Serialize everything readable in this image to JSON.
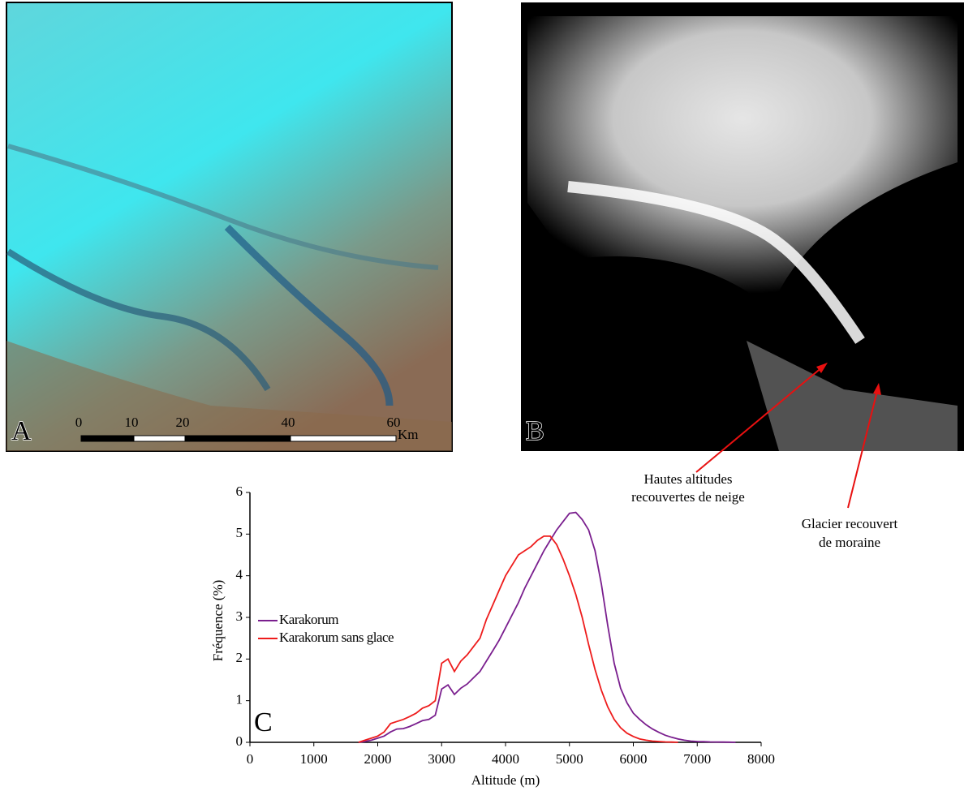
{
  "panels": {
    "a": {
      "label": "A",
      "scale_labels": [
        "0",
        "10",
        "20",
        "40",
        "60"
      ],
      "scale_unit": "Km"
    },
    "b": {
      "label": "B"
    }
  },
  "annotations": [
    {
      "lines": [
        "Hautes altitudes",
        "recouvertes de neige"
      ]
    },
    {
      "lines": [
        "Glacier recouvert",
        "de moraine"
      ]
    }
  ],
  "chart_data": {
    "type": "line",
    "panel_label": "C",
    "x_label": "Altitude (m)",
    "y_label": "Fréquence (%)",
    "x": [
      1700,
      1800,
      1900,
      2000,
      2100,
      2200,
      2300,
      2400,
      2500,
      2600,
      2700,
      2800,
      2900,
      3000,
      3100,
      3200,
      3300,
      3400,
      3500,
      3600,
      3700,
      3800,
      3900,
      4000,
      4100,
      4200,
      4300,
      4400,
      4500,
      4600,
      4700,
      4800,
      4900,
      5000,
      5100,
      5200,
      5300,
      5400,
      5500,
      5600,
      5700,
      5800,
      5900,
      6000,
      6100,
      6200,
      6300,
      6400,
      6500,
      6600,
      6700,
      6800,
      6900,
      7000,
      7100,
      7200,
      7300,
      7400,
      7500,
      7600
    ],
    "series": [
      {
        "name": "Karakorum",
        "color": "#7a1f8e",
        "values": [
          0,
          0.02,
          0.05,
          0.1,
          0.15,
          0.25,
          0.32,
          0.33,
          0.38,
          0.45,
          0.52,
          0.55,
          0.65,
          1.28,
          1.38,
          1.15,
          1.3,
          1.4,
          1.55,
          1.7,
          1.95,
          2.2,
          2.45,
          2.75,
          3.05,
          3.35,
          3.7,
          4.0,
          4.3,
          4.6,
          4.85,
          5.1,
          5.3,
          5.5,
          5.52,
          5.35,
          5.1,
          4.6,
          3.8,
          2.8,
          1.9,
          1.3,
          0.95,
          0.7,
          0.55,
          0.42,
          0.32,
          0.24,
          0.17,
          0.12,
          0.08,
          0.05,
          0.03,
          0.02,
          0.015,
          0.01,
          0.008,
          0.005,
          0.003,
          0
        ]
      },
      {
        "name": "Karakorum sans glace",
        "color": "#ee1c1c",
        "values": [
          0,
          0.05,
          0.1,
          0.15,
          0.25,
          0.45,
          0.5,
          0.55,
          0.62,
          0.7,
          0.82,
          0.88,
          1.0,
          1.9,
          2.0,
          1.7,
          1.95,
          2.1,
          2.3,
          2.5,
          2.95,
          3.3,
          3.65,
          4.0,
          4.25,
          4.5,
          4.6,
          4.7,
          4.85,
          4.95,
          4.95,
          4.75,
          4.4,
          4.0,
          3.55,
          3.0,
          2.35,
          1.75,
          1.25,
          0.85,
          0.55,
          0.35,
          0.22,
          0.14,
          0.08,
          0.05,
          0.03,
          0.02,
          0.01,
          0.005,
          0,
          null,
          null,
          null,
          null,
          null,
          null,
          null,
          null,
          null
        ]
      }
    ],
    "xlim": [
      0,
      8000
    ],
    "ylim": [
      0,
      6
    ],
    "xticks": [
      0,
      1000,
      2000,
      3000,
      4000,
      5000,
      6000,
      7000,
      8000
    ],
    "yticks": [
      0,
      1,
      2,
      3,
      4,
      5,
      6
    ],
    "grid": false,
    "legend": "left"
  }
}
